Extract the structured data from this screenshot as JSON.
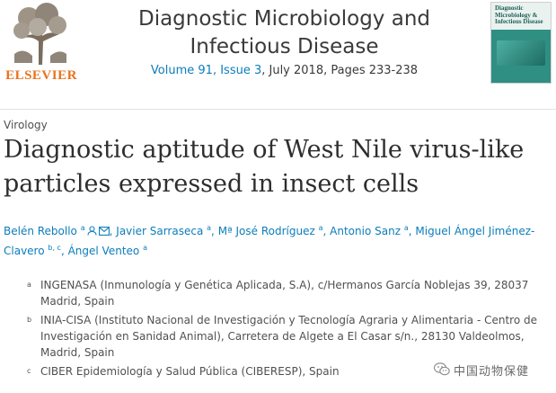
{
  "publisher": {
    "name": "ELSEVIER",
    "logo_icon": "elsevier-tree-icon"
  },
  "journal": {
    "title": "Diagnostic Microbiology and Infectious Disease",
    "issue_link": "Volume 91, Issue 3",
    "date_pages": ", July 2018, Pages 233-238",
    "cover_text": "Diagnostic Microbiology & Infectious Disease"
  },
  "article": {
    "section": "Virology",
    "title": "Diagnostic aptitude of West Nile virus-like particles expressed in insect cells"
  },
  "authors": [
    {
      "name": "Belén Rebollo",
      "sup": "a"
    },
    {
      "name": "Javier Sarraseca",
      "sup": "a"
    },
    {
      "name": "Mª José Rodríguez",
      "sup": "a"
    },
    {
      "name": "Antonio Sanz",
      "sup": "a"
    },
    {
      "name": "Miguel Ángel Jiménez-Clavero",
      "sup": "b, c"
    },
    {
      "name": "Ángel Venteo",
      "sup": "a"
    }
  ],
  "author_icons": [
    "person-icon",
    "mail-icon"
  ],
  "affiliations": [
    {
      "label": "a",
      "text": "INGENASA (Inmunología y Genética Aplicada, S.A), c/Hermanos García Noblejas 39, 28037 Madrid, Spain"
    },
    {
      "label": "b",
      "text": "INIA-CISA (Instituto Nacional de Investigación y Tecnología Agraria y Alimentaria - Centro de Investigación en Sanidad Animal), Carretera de Algete a El Casar s/n., 28130 Valdeolmos, Madrid, Spain"
    },
    {
      "label": "c",
      "text": "CIBER Epidemiología y Salud Pública (CIBERESP), Spain"
    }
  ],
  "watermark": {
    "text": "中国动物保健",
    "icon": "wechat-icon"
  },
  "colors": {
    "link": "#0c7dbb",
    "publisher_orange": "#e9711c",
    "cover_teal": "#2f8f83"
  }
}
